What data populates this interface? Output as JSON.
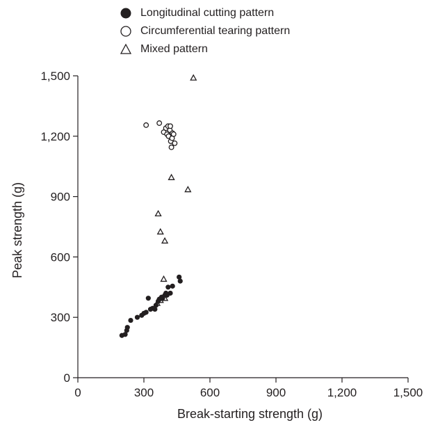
{
  "chart_data": {
    "type": "scatter",
    "xlabel": "Break-starting strength (g)",
    "ylabel": "Peak strength (g)",
    "xlim": [
      0,
      1500
    ],
    "ylim": [
      0,
      1500
    ],
    "xticks": [
      "0",
      "300",
      "600",
      "900",
      "1,200",
      "1,500"
    ],
    "yticks": [
      "0",
      "300",
      "600",
      "900",
      "1,200",
      "1,500"
    ],
    "xtick_values": [
      0,
      300,
      600,
      900,
      1200,
      1500
    ],
    "ytick_values": [
      0,
      300,
      600,
      900,
      1200,
      1500
    ],
    "grid": false,
    "legend_position": "top-center",
    "series": [
      {
        "name": "Longitudinal cutting pattern",
        "marker": "filled-circle",
        "color": "#231f20",
        "points": [
          [
            200,
            210
          ],
          [
            215,
            215
          ],
          [
            222,
            235
          ],
          [
            225,
            250
          ],
          [
            240,
            285
          ],
          [
            270,
            300
          ],
          [
            290,
            310
          ],
          [
            300,
            320
          ],
          [
            310,
            325
          ],
          [
            320,
            395
          ],
          [
            330,
            340
          ],
          [
            340,
            345
          ],
          [
            350,
            340
          ],
          [
            355,
            360
          ],
          [
            365,
            380
          ],
          [
            370,
            390
          ],
          [
            380,
            400
          ],
          [
            385,
            395
          ],
          [
            395,
            410
          ],
          [
            400,
            420
          ],
          [
            405,
            410
          ],
          [
            410,
            450
          ],
          [
            420,
            420
          ],
          [
            430,
            455
          ],
          [
            460,
            500
          ],
          [
            465,
            480
          ]
        ]
      },
      {
        "name": "Circumferential tearing pattern",
        "marker": "open-circle",
        "color": "#231f20",
        "points": [
          [
            310,
            1255
          ],
          [
            370,
            1265
          ],
          [
            390,
            1220
          ],
          [
            400,
            1240
          ],
          [
            405,
            1210
          ],
          [
            410,
            1250
          ],
          [
            412,
            1200
          ],
          [
            418,
            1230
          ],
          [
            420,
            1250
          ],
          [
            422,
            1175
          ],
          [
            425,
            1145
          ],
          [
            428,
            1190
          ],
          [
            430,
            1215
          ],
          [
            435,
            1210
          ],
          [
            440,
            1165
          ]
        ]
      },
      {
        "name": "Mixed pattern",
        "marker": "open-triangle",
        "color": "#231f20",
        "points": [
          [
            525,
            1490
          ],
          [
            425,
            995
          ],
          [
            500,
            935
          ],
          [
            365,
            815
          ],
          [
            375,
            725
          ],
          [
            395,
            680
          ],
          [
            390,
            490
          ],
          [
            360,
            370
          ],
          [
            375,
            385
          ],
          [
            395,
            395
          ]
        ]
      }
    ]
  }
}
